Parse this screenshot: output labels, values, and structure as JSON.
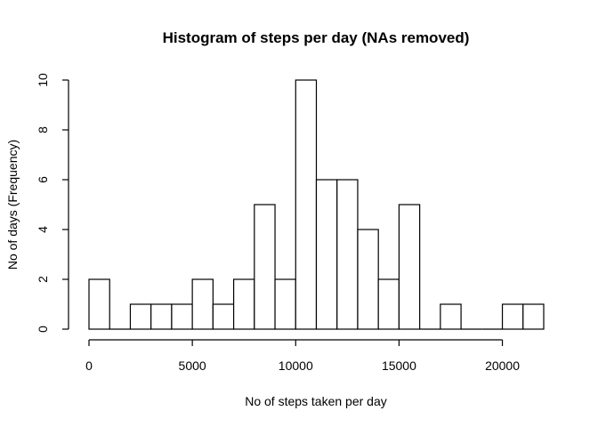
{
  "chart_data": {
    "type": "bar",
    "title": "Histogram of steps per day (NAs removed)",
    "xlabel": "No of steps taken per day",
    "ylabel": "No of days (Frequency)",
    "bin_width": 1000,
    "bins": [
      {
        "start": 0,
        "end": 1000,
        "count": 2
      },
      {
        "start": 1000,
        "end": 2000,
        "count": 0
      },
      {
        "start": 2000,
        "end": 3000,
        "count": 1
      },
      {
        "start": 3000,
        "end": 4000,
        "count": 1
      },
      {
        "start": 4000,
        "end": 5000,
        "count": 1
      },
      {
        "start": 5000,
        "end": 6000,
        "count": 2
      },
      {
        "start": 6000,
        "end": 7000,
        "count": 1
      },
      {
        "start": 7000,
        "end": 8000,
        "count": 2
      },
      {
        "start": 8000,
        "end": 9000,
        "count": 5
      },
      {
        "start": 9000,
        "end": 10000,
        "count": 2
      },
      {
        "start": 10000,
        "end": 11000,
        "count": 10
      },
      {
        "start": 11000,
        "end": 12000,
        "count": 6
      },
      {
        "start": 12000,
        "end": 13000,
        "count": 6
      },
      {
        "start": 13000,
        "end": 14000,
        "count": 4
      },
      {
        "start": 14000,
        "end": 15000,
        "count": 2
      },
      {
        "start": 15000,
        "end": 16000,
        "count": 5
      },
      {
        "start": 16000,
        "end": 17000,
        "count": 0
      },
      {
        "start": 17000,
        "end": 18000,
        "count": 1
      },
      {
        "start": 18000,
        "end": 19000,
        "count": 0
      },
      {
        "start": 19000,
        "end": 20000,
        "count": 0
      },
      {
        "start": 20000,
        "end": 21000,
        "count": 1
      },
      {
        "start": 21000,
        "end": 22000,
        "count": 1
      }
    ],
    "xlim": [
      0,
      22000
    ],
    "ylim": [
      0,
      10
    ],
    "x_ticks": [
      0,
      5000,
      10000,
      15000,
      20000
    ],
    "y_ticks": [
      0,
      2,
      4,
      6,
      8,
      10
    ],
    "grid": false,
    "legend": "none",
    "colors": {
      "bar_fill": "#ffffff",
      "bar_stroke": "#000000"
    }
  }
}
